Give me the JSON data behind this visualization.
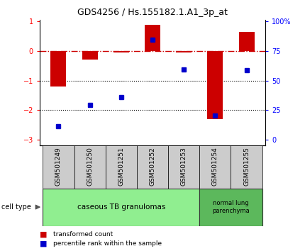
{
  "title": "GDS4256 / Hs.155182.1.A1_3p_at",
  "samples": [
    "GSM501249",
    "GSM501250",
    "GSM501251",
    "GSM501252",
    "GSM501253",
    "GSM501254",
    "GSM501255"
  ],
  "red_bars": [
    -1.2,
    -0.28,
    -0.05,
    0.9,
    -0.05,
    -2.3,
    0.65
  ],
  "blue_dots_left": [
    -2.55,
    -1.82,
    -1.55,
    0.38,
    -0.62,
    -2.18,
    -0.65
  ],
  "ylim": [
    -3.2,
    1.05
  ],
  "yticks_left": [
    -3,
    -2,
    -1,
    0,
    1
  ],
  "yticks_right_vals": [
    0,
    25,
    50,
    75,
    100
  ],
  "yticks_right_pos": [
    -3.0,
    -2.0,
    -1.0,
    0.0,
    1.0
  ],
  "bar_color": "#cc0000",
  "dot_color": "#0000cc",
  "dotted_hlines": [
    -1,
    -2
  ],
  "bar_width": 0.5,
  "group0_color": "#90EE90",
  "group1_color": "#5cb85c",
  "group0_label": "caseous TB granulomas",
  "group1_label": "normal lung\nparenchyma",
  "label_box_color": "#cccccc",
  "xlabel_fontsize": 6.5,
  "title_fontsize": 9
}
